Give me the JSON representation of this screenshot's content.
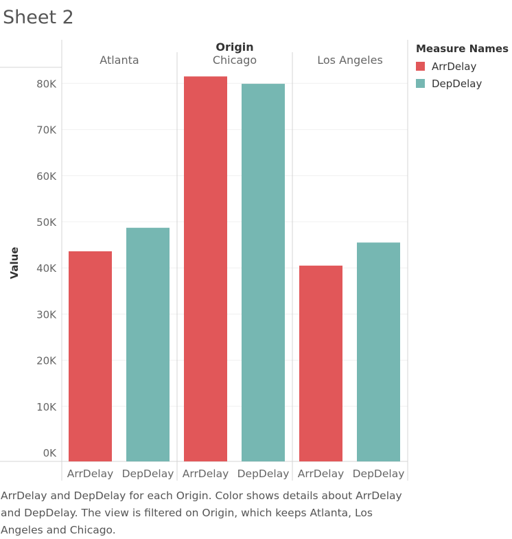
{
  "sheet_title": "Sheet 2",
  "chart_data": {
    "type": "bar",
    "column_header": "Origin",
    "panels": [
      "Atlanta",
      "Chicago",
      "Los Angeles"
    ],
    "categories": [
      "ArrDelay",
      "DepDelay"
    ],
    "ylabel": "Value",
    "ylim": [
      0,
      80000
    ],
    "ytick_labels": [
      "0K",
      "10K",
      "20K",
      "30K",
      "40K",
      "50K",
      "60K",
      "70K",
      "80K"
    ],
    "series": [
      {
        "panel": "Atlanta",
        "values": [
          43600,
          48700
        ]
      },
      {
        "panel": "Chicago",
        "values": [
          81500,
          79900
        ]
      },
      {
        "panel": "Los Angeles",
        "values": [
          40500,
          45500
        ]
      }
    ],
    "colors": {
      "ArrDelay": "#e15759",
      "DepDelay": "#76b7b2"
    },
    "grid": true
  },
  "legend": {
    "title": "Measure Names",
    "items": [
      {
        "label": "ArrDelay",
        "color": "#e15759"
      },
      {
        "label": "DepDelay",
        "color": "#76b7b2"
      }
    ]
  },
  "caption": "ArrDelay and DepDelay for each Origin.  Color shows details about ArrDelay and DepDelay. The view is filtered on Origin, which keeps Atlanta, Los Angeles and Chicago."
}
